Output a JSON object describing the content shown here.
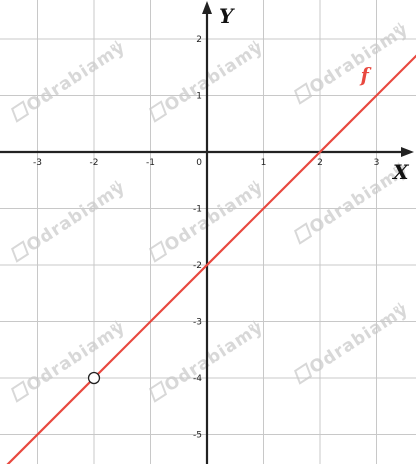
{
  "chart_data": {
    "type": "line",
    "title": "",
    "xlabel": "X",
    "ylabel": "Y",
    "xlim": [
      -3.6,
      3.75
    ],
    "ylim": [
      -5.5,
      2.7
    ],
    "x_ticks": [
      -3,
      -2,
      -1,
      1,
      2,
      3
    ],
    "y_ticks": [
      2,
      1,
      -1,
      -2,
      -3,
      -4,
      -5
    ],
    "x_tick_labels": [
      "-3",
      "-2",
      "-1",
      "1",
      "2",
      "3"
    ],
    "y_tick_labels": [
      "2",
      "1",
      "-1",
      "-2",
      "-3",
      "-4",
      "-5"
    ],
    "origin_label": "0",
    "grid": true,
    "series": [
      {
        "name": "f",
        "color": "#e8483f",
        "slope": 1,
        "intercept": -2,
        "x": [
          -3.6,
          3.75
        ],
        "y": [
          -5.6,
          1.75
        ]
      }
    ],
    "points": [
      {
        "x": -2,
        "y": -4,
        "style": "open-circle"
      }
    ]
  },
  "watermark": {
    "text": "Odrabiamy",
    "suffix": "pl"
  },
  "colors": {
    "grid": "#c8c8c8",
    "axis": "#222222",
    "line": "#e8483f",
    "watermark": "#d8d8d8"
  }
}
